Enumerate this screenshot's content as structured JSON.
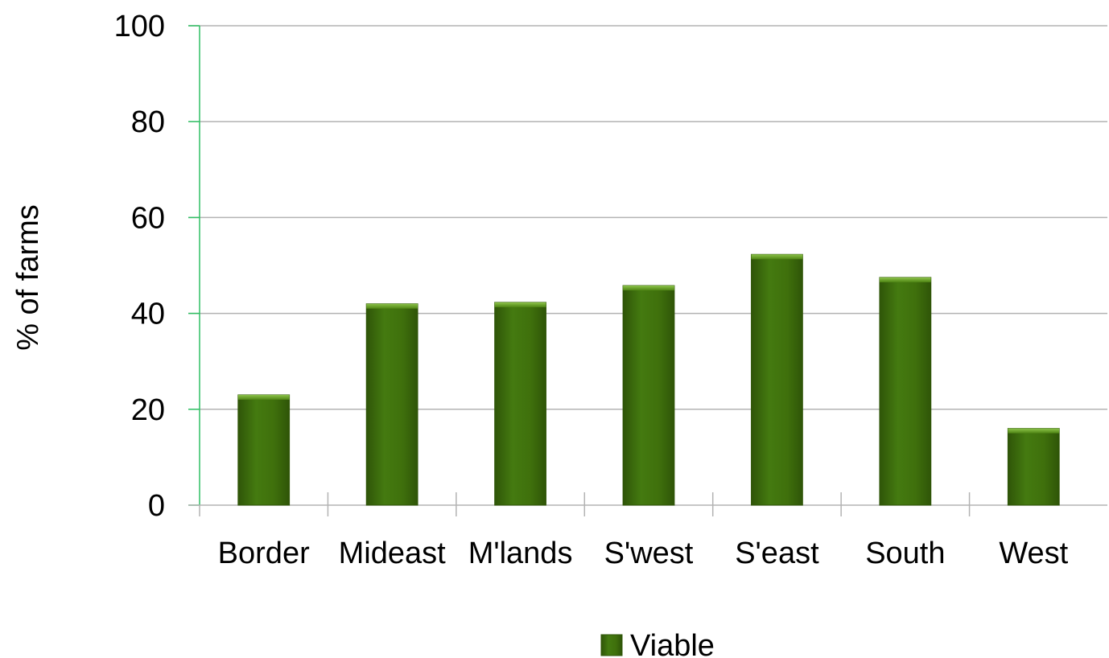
{
  "chart_data": {
    "type": "bar",
    "categories": [
      "Border",
      "Mideast",
      "M'lands",
      "S'west",
      "S'east",
      "South",
      "West"
    ],
    "series": [
      {
        "name": "Viable",
        "values": [
          23,
          42,
          42.3,
          45.8,
          52.3,
          47.5,
          16
        ],
        "color": "#3f700c"
      }
    ],
    "xlabel": "",
    "ylabel": "% of farms",
    "ylim": [
      0,
      100
    ],
    "yticks": [
      0,
      20,
      40,
      60,
      80,
      100
    ],
    "grid": true,
    "legend": "bottom",
    "colors": {
      "bar": "#3f700c",
      "bar_highlight": "#5f9a1e",
      "bar_dark": "#2f5508",
      "grid": "#b3b3b3",
      "axis": "#2fbf63"
    }
  }
}
